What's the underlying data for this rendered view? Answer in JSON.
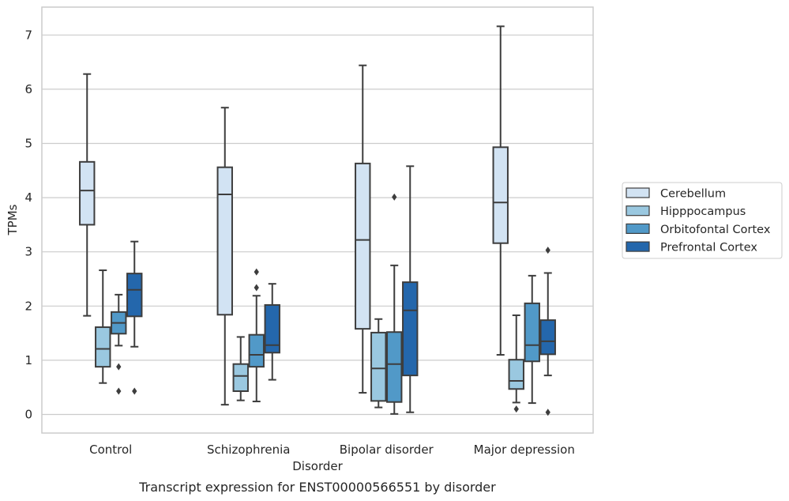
{
  "caption": "Transcript expression for ENST00000566551 by disorder",
  "chart_data": {
    "type": "box",
    "xlabel": "Disorder",
    "ylabel": "TPMs",
    "ylim": [
      -0.35,
      7.55
    ],
    "yticks": [
      0,
      1,
      2,
      3,
      4,
      5,
      6,
      7
    ],
    "grid": "horizontal",
    "legend_position": "right-center",
    "categories": [
      "Control",
      "Schizophrenia",
      "Bipolar disorder",
      "Major depression"
    ],
    "series": [
      {
        "name": "Cerebellum",
        "color": "#d2e3f3",
        "boxes": [
          {
            "whisker_low": 1.82,
            "q1": 3.5,
            "median": 4.13,
            "q3": 4.66,
            "whisker_high": 6.28,
            "outliers": []
          },
          {
            "whisker_low": 0.18,
            "q1": 1.84,
            "median": 4.06,
            "q3": 4.56,
            "whisker_high": 5.66,
            "outliers": []
          },
          {
            "whisker_low": 0.4,
            "q1": 1.58,
            "median": 3.22,
            "q3": 4.63,
            "whisker_high": 6.44,
            "outliers": []
          },
          {
            "whisker_low": 1.1,
            "q1": 3.16,
            "median": 3.91,
            "q3": 4.93,
            "whisker_high": 7.16,
            "outliers": []
          }
        ]
      },
      {
        "name": "Hipppocampus",
        "color": "#9ac8e0",
        "boxes": [
          {
            "whisker_low": 0.58,
            "q1": 0.88,
            "median": 1.21,
            "q3": 1.61,
            "whisker_high": 2.66,
            "outliers": []
          },
          {
            "whisker_low": 0.26,
            "q1": 0.43,
            "median": 0.71,
            "q3": 0.93,
            "whisker_high": 1.43,
            "outliers": []
          },
          {
            "whisker_low": 0.13,
            "q1": 0.25,
            "median": 0.85,
            "q3": 1.51,
            "whisker_high": 1.76,
            "outliers": []
          },
          {
            "whisker_low": 0.22,
            "q1": 0.47,
            "median": 0.62,
            "q3": 1.01,
            "whisker_high": 1.83,
            "outliers": [
              0.1
            ]
          }
        ]
      },
      {
        "name": "Orbitofontal Cortex",
        "color": "#5199c8",
        "boxes": [
          {
            "whisker_low": 1.27,
            "q1": 1.49,
            "median": 1.69,
            "q3": 1.89,
            "whisker_high": 2.21,
            "outliers": [
              0.88,
              0.43
            ]
          },
          {
            "whisker_low": 0.24,
            "q1": 0.88,
            "median": 1.1,
            "q3": 1.47,
            "whisker_high": 2.19,
            "outliers": [
              2.63,
              2.34
            ]
          },
          {
            "whisker_low": 0.01,
            "q1": 0.23,
            "median": 0.93,
            "q3": 1.52,
            "whisker_high": 2.75,
            "outliers": [
              4.01
            ]
          },
          {
            "whisker_low": 0.21,
            "q1": 0.98,
            "median": 1.28,
            "q3": 2.05,
            "whisker_high": 2.56,
            "outliers": []
          }
        ]
      },
      {
        "name": "Prefrontal Cortex",
        "color": "#2467ac",
        "boxes": [
          {
            "whisker_low": 1.25,
            "q1": 1.81,
            "median": 2.3,
            "q3": 2.6,
            "whisker_high": 3.19,
            "outliers": [
              0.43
            ]
          },
          {
            "whisker_low": 0.64,
            "q1": 1.14,
            "median": 1.28,
            "q3": 2.02,
            "whisker_high": 2.41,
            "outliers": []
          },
          {
            "whisker_low": 0.04,
            "q1": 0.72,
            "median": 1.92,
            "q3": 2.44,
            "whisker_high": 4.58,
            "outliers": []
          },
          {
            "whisker_low": 0.72,
            "q1": 1.11,
            "median": 1.35,
            "q3": 1.74,
            "whisker_high": 2.61,
            "outliers": [
              3.03,
              0.04
            ]
          }
        ]
      }
    ]
  }
}
